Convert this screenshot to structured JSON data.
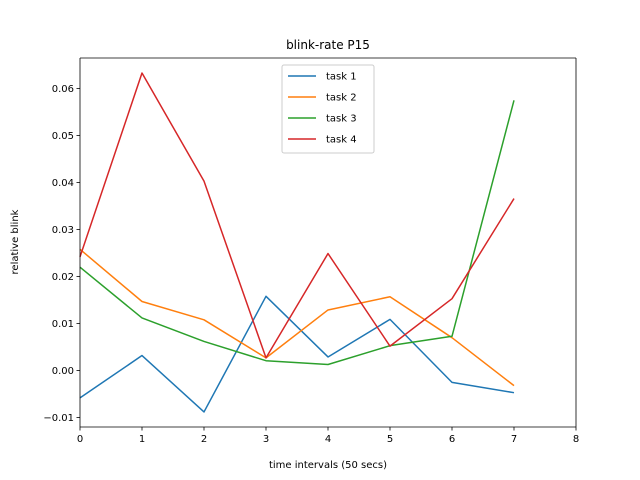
{
  "chart_data": {
    "type": "line",
    "title": "blink-rate P15",
    "xlabel": "time intervals (50 secs)",
    "ylabel": "relative blink",
    "xlim": [
      0,
      8
    ],
    "ylim": [
      -0.012,
      0.0665
    ],
    "x_ticks": [
      0,
      1,
      2,
      3,
      4,
      5,
      6,
      7,
      8
    ],
    "y_ticks": [
      -0.01,
      0.0,
      0.01,
      0.02,
      0.03,
      0.04,
      0.05,
      0.06
    ],
    "y_tick_labels": [
      "−0.01",
      "0.00",
      "0.01",
      "0.02",
      "0.03",
      "0.04",
      "0.05",
      "0.06"
    ],
    "x": [
      0,
      1,
      2,
      3,
      4,
      5,
      6,
      7
    ],
    "grid": false,
    "legend_position": "top-center",
    "series": [
      {
        "name": "task 1",
        "color": "#1f77b4",
        "values": [
          -0.0058,
          0.0032,
          -0.0088,
          0.0158,
          0.0029,
          0.0109,
          -0.0025,
          -0.0047
        ]
      },
      {
        "name": "task 2",
        "color": "#ff7f0e",
        "values": [
          0.0258,
          0.0147,
          0.0108,
          0.0027,
          0.0129,
          0.0157,
          0.007,
          -0.0032
        ]
      },
      {
        "name": "task 3",
        "color": "#2ca02c",
        "values": [
          0.022,
          0.0112,
          0.0062,
          0.0021,
          0.0013,
          0.0053,
          0.0073,
          0.0575
        ]
      },
      {
        "name": "task 4",
        "color": "#d62728",
        "values": [
          0.0242,
          0.0633,
          0.0403,
          0.0027,
          0.0249,
          0.0052,
          0.0153,
          0.0366
        ]
      }
    ]
  }
}
